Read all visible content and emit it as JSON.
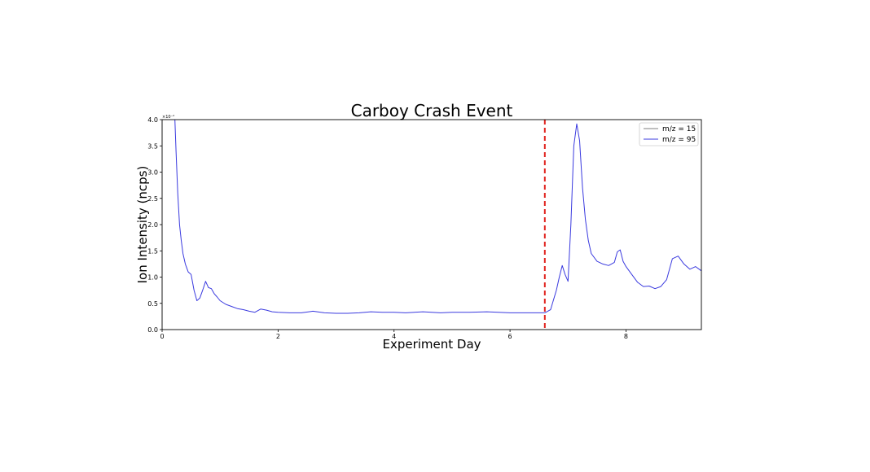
{
  "chart_data": {
    "type": "line",
    "title": "Carboy Crash Event",
    "xlabel": "Experiment Day",
    "ylabel": "Ion Intensity (ncps)",
    "y_scale_label": "×10⁻²",
    "xlim": [
      0,
      9.3
    ],
    "ylim": [
      0.0,
      4.0
    ],
    "xticks": [
      0,
      2,
      4,
      6,
      8
    ],
    "xtick_labels": [
      "0",
      "2",
      "4",
      "6",
      "8"
    ],
    "yticks": [
      0.0,
      0.5,
      1.0,
      1.5,
      2.0,
      2.5,
      3.0,
      3.5,
      4.0
    ],
    "ytick_labels": [
      "0.0",
      "0.5",
      "1.0",
      "1.5",
      "2.0",
      "2.5",
      "3.0",
      "3.5",
      "4.0"
    ],
    "grid": false,
    "legend_position": "top-right",
    "vertical_marker": {
      "x": 6.6,
      "color": "#e0201b",
      "style": "dashed"
    },
    "series": [
      {
        "name": "m/z = 15",
        "color": "#7f7f7f",
        "x": [],
        "y": []
      },
      {
        "name": "m/z = 95",
        "color": "#3a3adf",
        "x": [
          0.22,
          0.24,
          0.27,
          0.3,
          0.33,
          0.36,
          0.4,
          0.45,
          0.5,
          0.55,
          0.6,
          0.65,
          0.7,
          0.75,
          0.8,
          0.85,
          0.9,
          0.95,
          1.0,
          1.1,
          1.2,
          1.3,
          1.4,
          1.5,
          1.6,
          1.7,
          1.8,
          1.9,
          2.0,
          2.2,
          2.4,
          2.6,
          2.8,
          3.0,
          3.2,
          3.4,
          3.6,
          3.8,
          4.0,
          4.2,
          4.5,
          4.8,
          5.0,
          5.3,
          5.6,
          6.0,
          6.3,
          6.6,
          6.7,
          6.8,
          6.85,
          6.9,
          6.95,
          7.0,
          7.05,
          7.1,
          7.15,
          7.2,
          7.25,
          7.3,
          7.35,
          7.4,
          7.5,
          7.6,
          7.7,
          7.8,
          7.85,
          7.9,
          7.95,
          8.0,
          8.1,
          8.2,
          8.3,
          8.4,
          8.5,
          8.6,
          8.7,
          8.8,
          8.9,
          9.0,
          9.1,
          9.2,
          9.3
        ],
        "y": [
          4.0,
          3.4,
          2.6,
          2.0,
          1.7,
          1.45,
          1.25,
          1.1,
          1.05,
          0.75,
          0.55,
          0.6,
          0.75,
          0.92,
          0.8,
          0.78,
          0.68,
          0.62,
          0.55,
          0.48,
          0.44,
          0.4,
          0.38,
          0.35,
          0.33,
          0.39,
          0.37,
          0.34,
          0.33,
          0.32,
          0.32,
          0.35,
          0.32,
          0.31,
          0.31,
          0.32,
          0.34,
          0.33,
          0.33,
          0.32,
          0.34,
          0.32,
          0.33,
          0.33,
          0.34,
          0.32,
          0.32,
          0.32,
          0.38,
          0.75,
          1.0,
          1.22,
          1.05,
          0.92,
          2.0,
          3.5,
          3.92,
          3.6,
          2.7,
          2.1,
          1.7,
          1.45,
          1.3,
          1.25,
          1.22,
          1.28,
          1.48,
          1.52,
          1.3,
          1.2,
          1.05,
          0.9,
          0.82,
          0.83,
          0.78,
          0.82,
          0.95,
          1.35,
          1.4,
          1.25,
          1.15,
          1.2,
          1.12
        ]
      }
    ]
  }
}
